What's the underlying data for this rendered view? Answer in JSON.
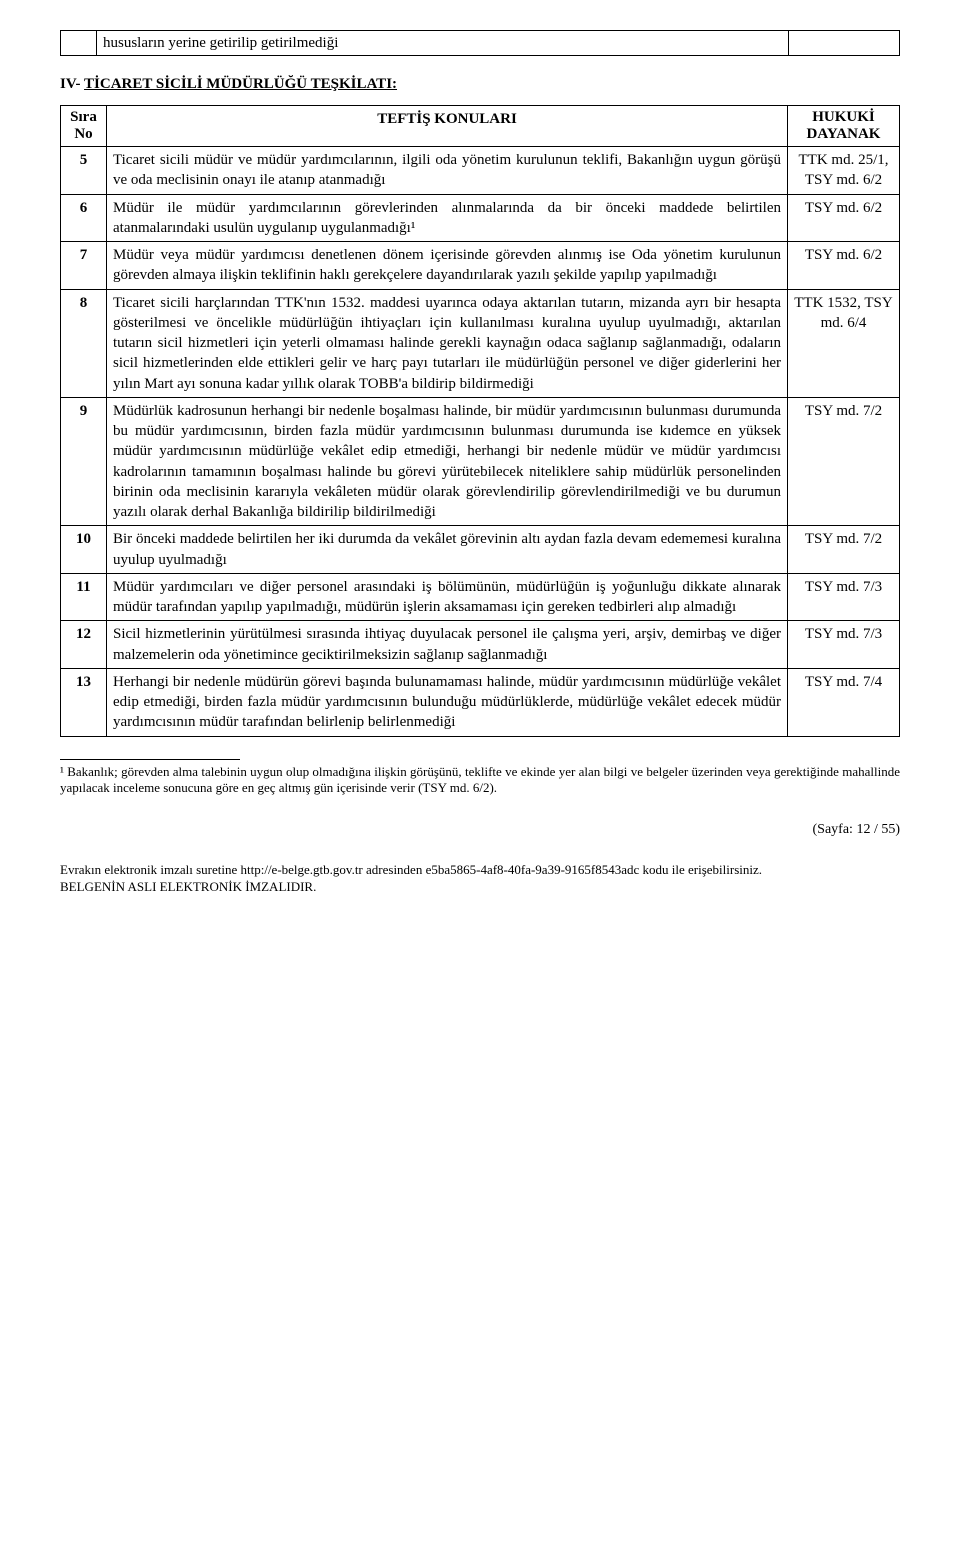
{
  "top_row_text": "hususların yerine getirilip getirilmediği",
  "section_prefix": "IV- ",
  "section_title": "TİCARET SİCİLİ MÜDÜRLÜĞÜ TEŞKİLATI:",
  "header": {
    "no_line1": "Sıra",
    "no_line2": "No",
    "subject": "TEFTİŞ KONULARI",
    "basis_line1": "HUKUKİ",
    "basis_line2": "DAYANAK"
  },
  "rows": [
    {
      "no": "5",
      "text": "Ticaret sicili müdür ve müdür yardımcılarının, ilgili oda yönetim kurulunun teklifi, Bakanlığın uygun görüşü ve oda meclisinin onayı ile atanıp atanmadığı",
      "basis": "TTK md. 25/1, TSY md. 6/2"
    },
    {
      "no": "6",
      "text": "Müdür ile müdür yardımcılarının görevlerinden alınmalarında da bir önceki maddede belirtilen atanmalarındaki usulün uygulanıp uygulanmadığı¹",
      "basis": "TSY md. 6/2"
    },
    {
      "no": "7",
      "text": "Müdür veya müdür yardımcısı denetlenen dönem içerisinde görevden alınmış ise Oda yönetim kurulunun görevden almaya ilişkin teklifinin haklı gerekçelere dayandırılarak yazılı şekilde yapılıp yapılmadığı",
      "basis": "TSY md. 6/2"
    },
    {
      "no": "8",
      "text": "Ticaret sicili harçlarından TTK'nın 1532. maddesi uyarınca odaya aktarılan tutarın, mizanda ayrı bir hesapta gösterilmesi ve öncelikle müdürlüğün ihtiyaçları için kullanılması kuralına uyulup uyulmadığı, aktarılan tutarın sicil hizmetleri için yeterli olmaması halinde gerekli kaynağın odaca sağlanıp sağlanmadığı, odaların sicil hizmetlerinden elde ettikleri gelir ve harç payı tutarları ile müdürlüğün personel ve diğer giderlerini her yılın Mart ayı sonuna kadar yıllık olarak TOBB'a bildirip bildirmediği",
      "basis": "TTK 1532, TSY md. 6/4"
    },
    {
      "no": "9",
      "text": "Müdürlük kadrosunun herhangi bir nedenle boşalması halinde, bir müdür yardımcısının bulunması durumunda bu müdür yardımcısının, birden fazla müdür yardımcısının bulunması durumunda ise kıdemce en yüksek müdür yardımcısının müdürlüğe vekâlet edip etmediği, herhangi bir nedenle müdür ve müdür yardımcısı kadrolarının tamamının boşalması halinde bu görevi yürütebilecek niteliklere sahip müdürlük personelinden birinin oda meclisinin kararıyla vekâleten müdür olarak görevlendirilip görevlendirilmediği ve bu durumun yazılı olarak derhal Bakanlığa bildirilip bildirilmediği",
      "basis": "TSY md. 7/2"
    },
    {
      "no": "10",
      "text": "Bir önceki maddede belirtilen her iki durumda da vekâlet görevinin altı aydan fazla devam edememesi kuralına uyulup uyulmadığı",
      "basis": "TSY md. 7/2"
    },
    {
      "no": "11",
      "text": "Müdür yardımcıları ve diğer personel arasındaki iş bölümünün, müdürlüğün iş yoğunluğu dikkate alınarak müdür tarafından yapılıp yapılmadığı, müdürün işlerin aksamaması için gereken tedbirleri alıp almadığı",
      "basis": "TSY md. 7/3"
    },
    {
      "no": "12",
      "text": "Sicil hizmetlerinin yürütülmesi sırasında ihtiyaç duyulacak personel ile çalışma yeri, arşiv, demirbaş ve diğer malzemelerin oda yönetimince geciktirilmeksizin sağlanıp sağlanmadığı",
      "basis": "TSY md. 7/3"
    },
    {
      "no": "13",
      "text": "Herhangi bir nedenle müdürün görevi başında bulunamaması halinde, müdür yardımcısının müdürlüğe vekâlet edip etmediği, birden fazla müdür yardımcısının bulunduğu müdürlüklerde, müdürlüğe vekâlet edecek müdür yardımcısının müdür tarafından belirlenip belirlenmediği",
      "basis": "TSY md. 7/4"
    }
  ],
  "footnote": "¹ Bakanlık; görevden alma talebinin uygun olup olmadığına ilişkin görüşünü, teklifte ve ekinde yer alan bilgi ve belgeler üzerinden veya gerektiğinde mahallinde yapılacak inceleme sonucuna göre en geç altmış gün içerisinde verir (TSY md. 6/2).",
  "page_num": "(Sayfa: 12 / 55)",
  "footer_line1": "Evrakın elektronik imzalı suretine http://e-belge.gtb.gov.tr adresinden e5ba5865-4af8-40fa-9a39-9165f8543adc kodu ile erişebilirsiniz.",
  "footer_line2": "BELGENİN ASLI ELEKTRONİK İMZALIDIR."
}
